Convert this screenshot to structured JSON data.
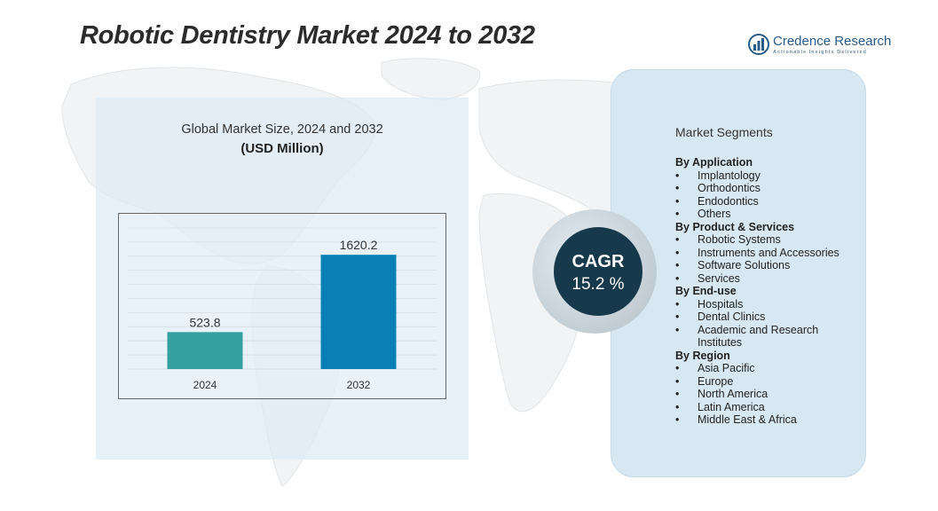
{
  "title": "Robotic Dentistry Market 2024 to 2032",
  "logo": {
    "name": "Credence Research",
    "tagline": "Actionable Insights Delivered"
  },
  "chart_data": {
    "type": "bar",
    "title": "Global Market Size, 2024 and 2032",
    "subtitle": "(USD Million)",
    "categories": [
      "2024",
      "2032"
    ],
    "values": [
      523.8,
      1620.2
    ],
    "value_labels": [
      "523.8",
      "1620.2"
    ],
    "colors": [
      "#33a1a0",
      "#0a7fb5"
    ],
    "ylim": [
      0,
      2000
    ],
    "grid": true
  },
  "cagr": {
    "label": "CAGR",
    "value": "15.2  %"
  },
  "segments": {
    "title": "Market Segments",
    "groups": [
      {
        "head": "By Application",
        "items": [
          "Implantology",
          "Orthodontics",
          "Endodontics",
          "Others"
        ]
      },
      {
        "head": "By  Product & Services",
        "items": [
          "Robotic Systems",
          "Instruments and Accessories",
          "Software Solutions",
          "Services"
        ]
      },
      {
        "head": "By  End-use",
        "items": [
          "Hospitals",
          "Dental Clinics",
          "Academic and Research Institutes"
        ]
      },
      {
        "head": "By Region",
        "items": [
          "Asia Pacific",
          "Europe",
          "North America",
          "Latin America",
          "Middle East & Africa"
        ]
      }
    ]
  }
}
